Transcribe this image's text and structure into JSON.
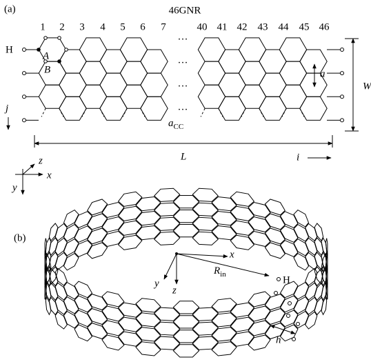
{
  "panel_a": {
    "label": "(a)",
    "title": "46GNR",
    "columns": [
      "1",
      "2",
      "3",
      "4",
      "5",
      "6",
      "7",
      "40",
      "41",
      "42",
      "43",
      "44",
      "45",
      "46"
    ],
    "ellipsis": "···",
    "h_atom": "H",
    "site_a": "A",
    "site_b": "B",
    "lattice_a": "a",
    "width": "W",
    "j_index": "j",
    "bond_length": {
      "symbol": "a",
      "subscript": "CC"
    },
    "length": "L",
    "i_index": "i",
    "axes": {
      "x": "x",
      "y": "y",
      "z": "z"
    }
  },
  "panel_b": {
    "label": "(b)",
    "axes": {
      "x": "x",
      "y": "y",
      "z": "z"
    },
    "radius": {
      "symbol": "R",
      "subscript": "in"
    },
    "h_atom": "H",
    "spacing": "h"
  }
}
